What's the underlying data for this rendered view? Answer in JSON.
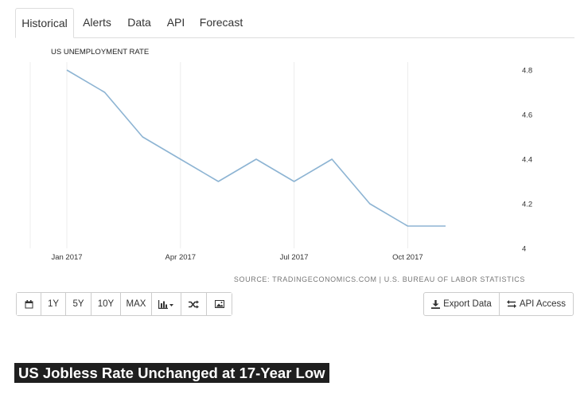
{
  "tabs": [
    {
      "label": "Historical",
      "active": true
    },
    {
      "label": "Alerts",
      "active": false
    },
    {
      "label": "Data",
      "active": false
    },
    {
      "label": "API",
      "active": false
    },
    {
      "label": "Forecast",
      "active": false
    }
  ],
  "chart_data": {
    "type": "line",
    "title": "US UNEMPLOYMENT RATE",
    "x": [
      "2017-01",
      "2017-02",
      "2017-03",
      "2017-04",
      "2017-05",
      "2017-06",
      "2017-07",
      "2017-08",
      "2017-09",
      "2017-10",
      "2017-11"
    ],
    "series": [
      {
        "values": [
          4.8,
          4.7,
          4.5,
          4.4,
          4.3,
          4.4,
          4.3,
          4.4,
          4.2,
          4.1,
          4.1
        ]
      }
    ],
    "x_tick_labels": [
      "Jan 2017",
      "Apr 2017",
      "Jul 2017",
      "Oct 2017"
    ],
    "y_ticks": [
      4,
      4.2,
      4.4,
      4.6,
      4.8
    ],
    "y_tick_labels": [
      "4",
      "4.2",
      "4.4",
      "4.6",
      "4.8"
    ],
    "ylim": [
      4,
      4.8
    ],
    "y_axis_side": "right",
    "line_color": "#8db4d3",
    "grid": "vertical",
    "source": "SOURCE: TRADINGECONOMICS.COM | U.S. BUREAU OF LABOR STATISTICS"
  },
  "toolbar": {
    "left_buttons": [
      {
        "label": "",
        "icon": "calendar-icon"
      },
      {
        "label": "1Y"
      },
      {
        "label": "5Y"
      },
      {
        "label": "10Y"
      },
      {
        "label": "MAX"
      },
      {
        "label": "",
        "icon": "bar-chart-dropdown-icon"
      },
      {
        "label": "",
        "icon": "shuffle-icon"
      },
      {
        "label": "",
        "icon": "image-icon"
      }
    ],
    "export_label": "Export Data",
    "api_label": "API Access"
  },
  "headline": "US Jobless Rate Unchanged at 17-Year Low"
}
